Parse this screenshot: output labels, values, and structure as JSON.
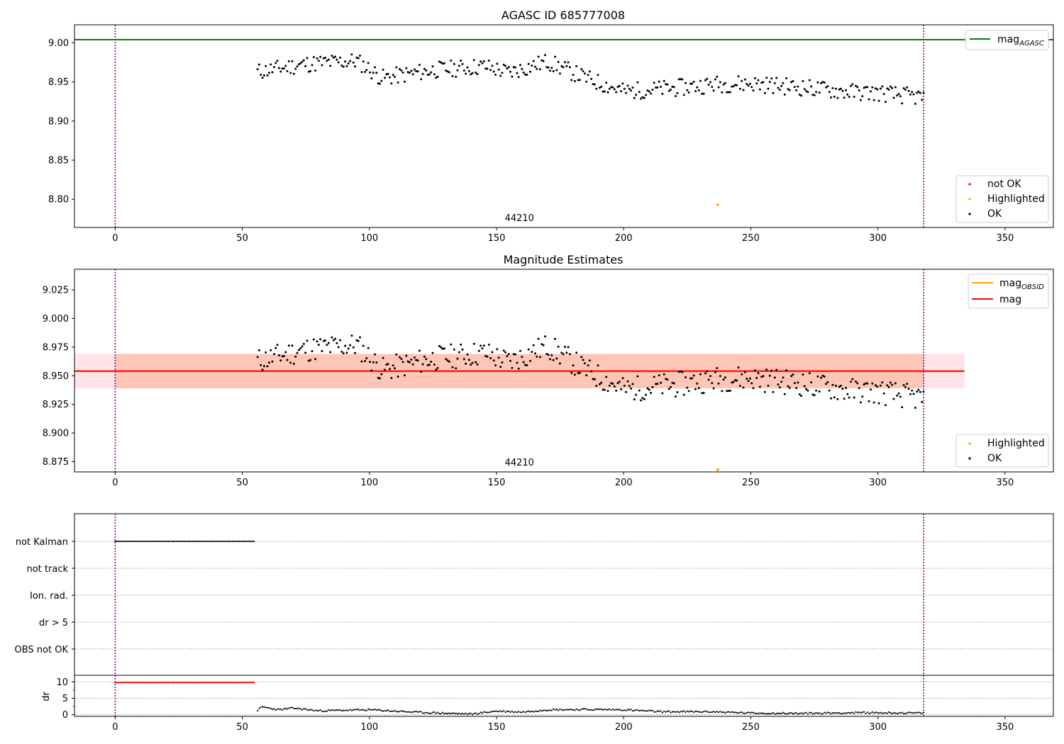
{
  "chart_data": [
    {
      "type": "scatter",
      "title": "AGASC ID 685777008",
      "xlim": [
        -16,
        369
      ],
      "ylim": [
        8.764,
        9.023
      ],
      "xticks": [
        0,
        50,
        100,
        150,
        200,
        250,
        300,
        350
      ],
      "yticks": [
        "8.80",
        "8.85",
        "8.90",
        "8.95",
        "9.00"
      ],
      "annotation": "44210",
      "annotation_x": 159,
      "vlines": [
        0,
        318
      ],
      "hline": {
        "label_base": "mag",
        "label_sub": "AGASC",
        "y": 9.004,
        "color": "#008000"
      },
      "series": [
        {
          "name": "OK",
          "color": "#000000",
          "x_range": [
            56,
            318
          ],
          "y_anchor_x": [
            56,
            60,
            75,
            95,
            105,
            125,
            145,
            155,
            170,
            185,
            200,
            220,
            235,
            250,
            270,
            290,
            300,
            318
          ],
          "y_anchor_y": [
            8.963,
            8.965,
            8.973,
            8.977,
            8.955,
            8.965,
            8.97,
            8.962,
            8.976,
            8.955,
            8.938,
            8.942,
            8.947,
            8.948,
            8.943,
            8.937,
            8.936,
            8.93
          ]
        },
        {
          "name": "Highlighted",
          "color": "#ffa500",
          "points": [
            [
              237,
              8.793
            ]
          ]
        },
        {
          "name": "not OK",
          "color": "#ff0000",
          "points": []
        }
      ],
      "legend_main": [
        "not OK",
        "Highlighted",
        "OK"
      ],
      "legend_position": "lower-right"
    },
    {
      "type": "scatter",
      "title": "Magnitude Estimates",
      "xlim": [
        -16,
        369
      ],
      "ylim": [
        8.866,
        9.043
      ],
      "xticks": [
        0,
        50,
        100,
        150,
        200,
        250,
        300,
        350
      ],
      "yticks": [
        "8.875",
        "8.900",
        "8.925",
        "8.950",
        "8.975",
        "9.000",
        "9.025"
      ],
      "annotation": "44210",
      "annotation_x": 159,
      "vlines": [
        0,
        318
      ],
      "lines": [
        {
          "label_base": "mag",
          "label_sub": "OBSID",
          "color": "#ffa500",
          "y": 8.954,
          "x_range": [
            -16,
            334
          ]
        },
        {
          "label_base": "mag",
          "label_sub": "",
          "color": "#ff0000",
          "y": 8.954,
          "x_range": [
            -16,
            334
          ]
        }
      ],
      "bands": [
        {
          "color": "#ffc0cb",
          "y_range": [
            8.939,
            8.969
          ],
          "x_range": [
            -16,
            334
          ]
        },
        {
          "color": "#ffa07a",
          "y_range": [
            8.939,
            8.969
          ],
          "x_range": [
            0,
            318
          ]
        }
      ],
      "legend_markers": [
        "Highlighted",
        "OK"
      ],
      "highlighted_point": [
        237,
        8.867
      ]
    },
    {
      "type": "scatter",
      "categories": [
        "not Kalman",
        "not track",
        "Ion. rad.",
        "dr > 5",
        "OBS not OK"
      ],
      "flag_points": {
        "category": "not Kalman",
        "x_range": [
          0,
          55
        ]
      },
      "dr_panel": {
        "ylabel": "dr",
        "ylim": [
          -0.5,
          12
        ],
        "yticks": [
          "0",
          "5",
          "10"
        ],
        "not_ok_x_range": [
          0,
          55
        ],
        "not_ok_y": 9.8,
        "ok_x_range": [
          56,
          318
        ],
        "ok_anchor_x": [
          56,
          58,
          64,
          70,
          80,
          100,
          120,
          140,
          150,
          160,
          170,
          185,
          200,
          215,
          235,
          250,
          270,
          290,
          300,
          318
        ],
        "ok_anchor_y": [
          1.4,
          2.4,
          1.5,
          2.0,
          1.2,
          1.5,
          0.7,
          0.2,
          1.1,
          0.8,
          1.5,
          1.6,
          1.5,
          0.9,
          0.9,
          0.5,
          0.4,
          0.6,
          0.6,
          0.5
        ]
      },
      "xlim": [
        -16,
        369
      ],
      "xticks": [
        0,
        50,
        100,
        150,
        200,
        250,
        300,
        350
      ],
      "vlines": [
        0,
        318
      ]
    }
  ]
}
